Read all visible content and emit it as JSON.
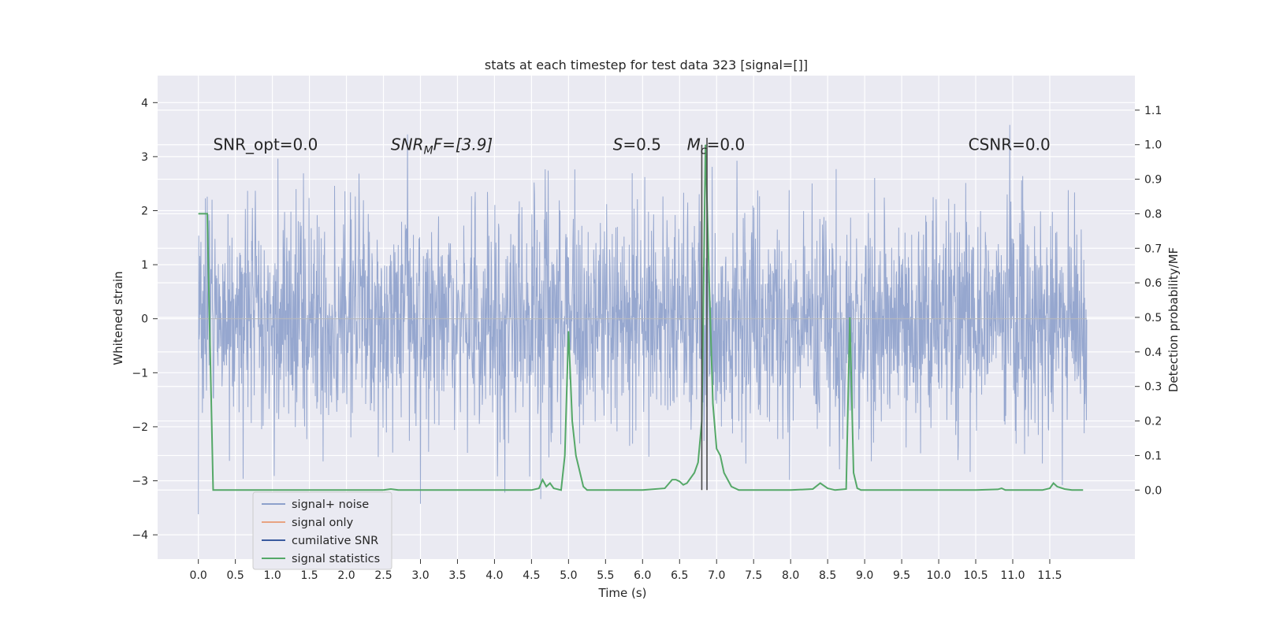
{
  "chart_data": {
    "type": "line",
    "title": "stats at each timestep for test data 323 [signal=[]]",
    "xlabel": "Time (s)",
    "ylabel_left": "Whitened strain",
    "ylabel_right": "Detection probability/MF",
    "xlim": [
      -0.55,
      12.65
    ],
    "ylim_left": [
      -4.45,
      4.5
    ],
    "ylim_right": [
      -0.2,
      1.2
    ],
    "x_ticks": [
      0.0,
      0.5,
      1.0,
      1.5,
      2.0,
      2.5,
      3.0,
      3.5,
      4.0,
      4.5,
      5.0,
      5.5,
      6.0,
      6.5,
      7.0,
      7.5,
      8.0,
      8.5,
      9.0,
      9.5,
      10.0,
      10.5,
      11.0,
      11.5
    ],
    "x_tick_labels": [
      "0.0",
      "0.5",
      "1.0",
      "1.5",
      "2.0",
      "2.5",
      "3.0",
      "3.5",
      "4.0",
      "4.5",
      "5.0",
      "5.5",
      "6.0",
      "6.5",
      "7.0",
      "7.5",
      "8.0",
      "8.5",
      "9.0",
      "9.5",
      "10.0",
      "10.5",
      "11.0",
      "11.5"
    ],
    "y_left_ticks": [
      4,
      3,
      2,
      1,
      0,
      -1,
      -2,
      -3,
      -4
    ],
    "y_left_tick_labels": [
      "4",
      "3",
      "2",
      "1",
      "0",
      "−1",
      "−2",
      "−3",
      "−4"
    ],
    "y_right_ticks": [
      1.1,
      1.0,
      0.9,
      0.8,
      0.7,
      0.6,
      0.5,
      0.4,
      0.3,
      0.2,
      0.1,
      0.0
    ],
    "y_right_tick_labels": [
      "1.1",
      "1.0",
      "0.9",
      "0.8",
      "0.7",
      "0.6",
      "0.5",
      "0.4",
      "0.3",
      "0.2",
      "0.1",
      "0.0"
    ],
    "grid": true,
    "legend_position": "lower-left",
    "series": [
      {
        "name": "signal+ noise",
        "axis": "left",
        "color": "#8da0cb",
        "x_range": [
          0.0,
          12.0
        ],
        "approx_range": [
          -3.9,
          4.1
        ],
        "note_values": "dense whitened noise trace"
      },
      {
        "name": "signal only",
        "axis": "left",
        "color": "#e8a382",
        "x": [],
        "y": []
      },
      {
        "name": "cumilative SNR",
        "axis": "left",
        "color": "#3a5a9e",
        "x": [],
        "y": []
      },
      {
        "name": "signal statistics",
        "axis": "right",
        "color": "#55a868",
        "x": [
          0.0,
          0.05,
          0.12,
          0.2,
          0.3,
          0.5,
          1.0,
          1.5,
          2.0,
          2.5,
          2.6,
          2.7,
          3.0,
          3.5,
          4.0,
          4.5,
          4.6,
          4.65,
          4.7,
          4.75,
          4.8,
          4.9,
          4.95,
          5.0,
          5.05,
          5.1,
          5.2,
          5.25,
          5.3,
          5.5,
          6.0,
          6.3,
          6.4,
          6.45,
          6.5,
          6.55,
          6.6,
          6.7,
          6.75,
          6.8,
          6.85,
          6.9,
          6.95,
          7.0,
          7.05,
          7.1,
          7.2,
          7.3,
          7.5,
          8.0,
          8.3,
          8.4,
          8.5,
          8.6,
          8.75,
          8.8,
          8.85,
          8.9,
          8.95,
          9.0,
          9.5,
          10.0,
          10.5,
          10.8,
          10.85,
          10.9,
          11.0,
          11.4,
          11.5,
          11.55,
          11.6,
          11.7,
          11.8,
          11.9,
          11.95
        ],
        "y": [
          0.8,
          0.8,
          0.8,
          0.0,
          0.0,
          0.0,
          0.0,
          0.0,
          0.0,
          0.0,
          0.003,
          0.0,
          0.0,
          0.0,
          0.0,
          0.0,
          0.005,
          0.03,
          0.01,
          0.02,
          0.005,
          0.0,
          0.1,
          0.46,
          0.2,
          0.1,
          0.01,
          0.0,
          0.0,
          0.0,
          0.0,
          0.005,
          0.03,
          0.03,
          0.025,
          0.015,
          0.02,
          0.05,
          0.08,
          0.2,
          1.0,
          0.6,
          0.25,
          0.12,
          0.1,
          0.05,
          0.01,
          0.0,
          0.0,
          0.0,
          0.003,
          0.02,
          0.005,
          0.0,
          0.003,
          0.5,
          0.05,
          0.005,
          0.0,
          0.0,
          0.0,
          0.0,
          0.0,
          0.002,
          0.005,
          0.0,
          0.0,
          0.0,
          0.005,
          0.02,
          0.01,
          0.003,
          0.0,
          0.0,
          0.0
        ]
      }
    ],
    "vertical_markers": [
      {
        "x": 6.8,
        "y_from": 0.0,
        "y_to": 1.0,
        "color": "#4a4a4a"
      },
      {
        "x": 6.87,
        "y_from": 0.0,
        "y_to": 1.02,
        "color": "#4a4a4a"
      }
    ],
    "annotations": [
      {
        "text": "SNR_opt=0.0",
        "x": 0.2,
        "y_right": 1.0
      },
      {
        "text_parts": [
          "SNR",
          "M",
          "F=[3.9]"
        ],
        "x": 2.6,
        "y_right": 1.0
      },
      {
        "text_parts": [
          "S",
          "=0.5"
        ],
        "x": 5.6,
        "y_right": 1.0
      },
      {
        "text_parts": [
          "M",
          "c",
          "=0.0"
        ],
        "x": 6.6,
        "y_right": 1.0
      },
      {
        "text": "CSNR=0.0",
        "x": 10.4,
        "y_right": 1.0
      }
    ]
  }
}
